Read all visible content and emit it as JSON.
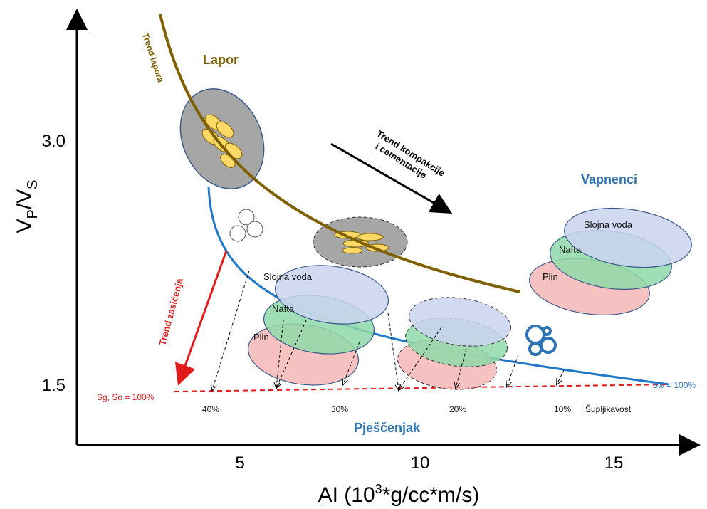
{
  "axes": {
    "x_label": [
      "AI (10",
      "3",
      "*g/cc*m/s)"
    ],
    "y_label": [
      "V",
      "P",
      "/V",
      "S"
    ],
    "x_ticks": [
      "5",
      "10",
      "15"
    ],
    "y_ticks": [
      "3.0",
      "1.5"
    ]
  },
  "shale": {
    "name": "Lapor",
    "trend": "Trend lapora"
  },
  "compaction_trend": [
    "Trend kompakcije",
    "i cementacije"
  ],
  "limestone": {
    "name": "Vapnenci",
    "fluids": [
      "Slojna voda",
      "Nafta",
      "Plin"
    ]
  },
  "sandstone": {
    "name": "Pješčenjak",
    "fluids": [
      "Slojna voda",
      "Nafta",
      "Plin"
    ]
  },
  "saturation": {
    "trend": "Trend zasićenja",
    "gas_oil": "Sg, So = 100%",
    "water": "Sw = 100%"
  },
  "porosity": {
    "values": [
      "40%",
      "30%",
      "20%",
      "10%"
    ],
    "label": "Šupljikavost"
  }
}
